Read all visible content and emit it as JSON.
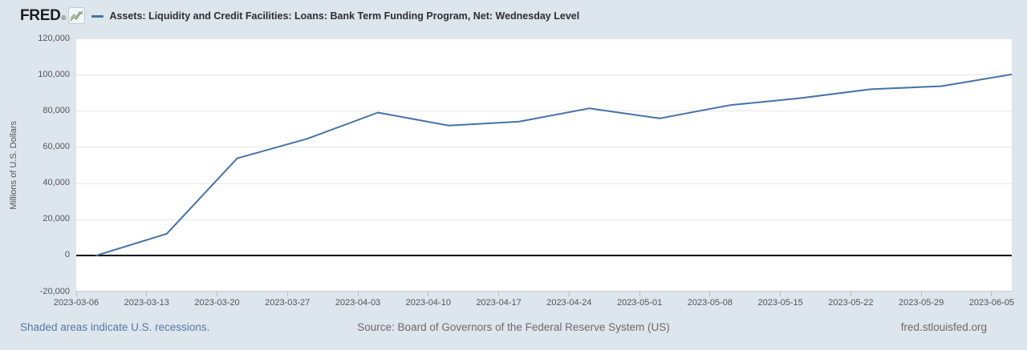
{
  "header": {
    "logo_text": "FRED",
    "logo_reg": "®",
    "legend_label": "Assets: Liquidity and Credit Facilities: Loans: Bank Term Funding Program, Net: Wednesday Level"
  },
  "chart_data": {
    "type": "line",
    "title": "Assets: Liquidity and Credit Facilities: Loans: Bank Term Funding Program, Net: Wednesday Level",
    "ylabel": "Millions of U.S. Dollars",
    "xlabel": "",
    "x_min": "2023-03-06",
    "x_max": "2023-06-07",
    "ylim": [
      -20000,
      120000
    ],
    "x": [
      "2023-03-08",
      "2023-03-15",
      "2023-03-22",
      "2023-03-29",
      "2023-04-05",
      "2023-04-12",
      "2023-04-19",
      "2023-04-26",
      "2023-05-03",
      "2023-05-10",
      "2023-05-17",
      "2023-05-24",
      "2023-05-31",
      "2023-06-07"
    ],
    "values": [
      0,
      11943,
      53669,
      64595,
      79021,
      71837,
      73982,
      81327,
      75778,
      83101,
      87006,
      91907,
      93615,
      100161
    ],
    "xtick_labels": [
      "2023-03-06",
      "2023-03-13",
      "2023-03-20",
      "2023-03-27",
      "2023-04-03",
      "2023-04-10",
      "2023-04-17",
      "2023-04-24",
      "2023-05-01",
      "2023-05-08",
      "2023-05-15",
      "2023-05-22",
      "2023-05-29",
      "2023-06-05"
    ],
    "ytick_values": [
      -20000,
      0,
      20000,
      40000,
      60000,
      80000,
      100000,
      120000
    ],
    "ytick_labels": [
      "-20,000",
      "0",
      "20,000",
      "40,000",
      "60,000",
      "80,000",
      "100,000",
      "120,000"
    ],
    "grid": true,
    "legend_position": "top",
    "line_color": "#4572a7",
    "zero_line_color": "#000000"
  },
  "footer": {
    "recession_note": "Shaded areas indicate U.S. recessions.",
    "source": "Source: Board of Governors of the Federal Reserve System (US)",
    "site": "fred.stlouisfed.org"
  },
  "colors": {
    "page_bg": "#dde5ed",
    "plot_bg": "#ffffff",
    "accent": "#4572a7",
    "link": "#557aa5",
    "grid": "#e7e7e7",
    "axis_line": "#c9cfd6",
    "axis_text": "#555555",
    "footer_text": "#6b6b6b"
  }
}
